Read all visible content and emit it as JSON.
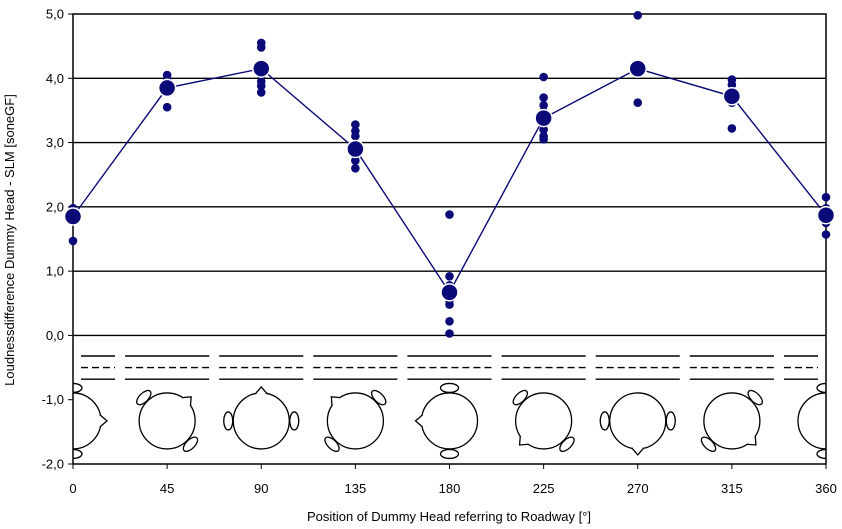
{
  "chart_data": {
    "type": "scatter",
    "xlabel": "Position of Dummy Head referring to Roadway [°]",
    "ylabel": "Loudnessdifference Dummy Head - SLM [soneGF]",
    "xlim": [
      0,
      360
    ],
    "ylim": [
      -2.0,
      5.0
    ],
    "x_ticks": [
      "0",
      "45",
      "90",
      "135",
      "180",
      "225",
      "270",
      "315",
      "360"
    ],
    "y_ticks": [
      "5,0",
      "4,0",
      "3,0",
      "2,0",
      "1,0",
      "0,0",
      "-1,0",
      "-2,0"
    ],
    "grid": "horizontal major lines",
    "colors": {
      "series": "#0a0a78",
      "grid": "#000000",
      "background": "#ffffff"
    },
    "series": [
      {
        "style": "small-dots",
        "points": [
          [
            0,
            1.98
          ],
          [
            0,
            1.93
          ],
          [
            0,
            1.88
          ],
          [
            0,
            1.8
          ],
          [
            0,
            1.47
          ],
          [
            45,
            4.05
          ],
          [
            45,
            3.98
          ],
          [
            45,
            3.88
          ],
          [
            45,
            3.8
          ],
          [
            45,
            3.55
          ],
          [
            90,
            4.55
          ],
          [
            90,
            4.48
          ],
          [
            90,
            4.15
          ],
          [
            90,
            4.05
          ],
          [
            90,
            3.95
          ],
          [
            90,
            3.88
          ],
          [
            90,
            3.78
          ],
          [
            135,
            3.28
          ],
          [
            135,
            3.18
          ],
          [
            135,
            3.1
          ],
          [
            135,
            2.98
          ],
          [
            135,
            2.9
          ],
          [
            135,
            2.8
          ],
          [
            135,
            2.72
          ],
          [
            135,
            2.6
          ],
          [
            180,
            1.88
          ],
          [
            180,
            0.92
          ],
          [
            180,
            0.78
          ],
          [
            180,
            0.55
          ],
          [
            180,
            0.48
          ],
          [
            180,
            0.22
          ],
          [
            180,
            0.03
          ],
          [
            225,
            4.02
          ],
          [
            225,
            3.7
          ],
          [
            225,
            3.58
          ],
          [
            225,
            3.48
          ],
          [
            225,
            3.3
          ],
          [
            225,
            3.2
          ],
          [
            225,
            3.1
          ],
          [
            225,
            3.05
          ],
          [
            270,
            4.98
          ],
          [
            270,
            4.22
          ],
          [
            270,
            4.1
          ],
          [
            270,
            3.62
          ],
          [
            315,
            3.98
          ],
          [
            315,
            3.9
          ],
          [
            315,
            3.75
          ],
          [
            315,
            3.62
          ],
          [
            315,
            3.22
          ],
          [
            360,
            2.15
          ],
          [
            360,
            1.98
          ],
          [
            360,
            1.9
          ],
          [
            360,
            1.75
          ],
          [
            360,
            1.57
          ]
        ]
      },
      {
        "style": "mean-line",
        "x": [
          0,
          45,
          90,
          135,
          180,
          225,
          270,
          315,
          360
        ],
        "y": [
          1.85,
          3.85,
          4.15,
          2.9,
          0.67,
          3.38,
          4.15,
          3.72,
          1.87
        ]
      }
    ]
  }
}
